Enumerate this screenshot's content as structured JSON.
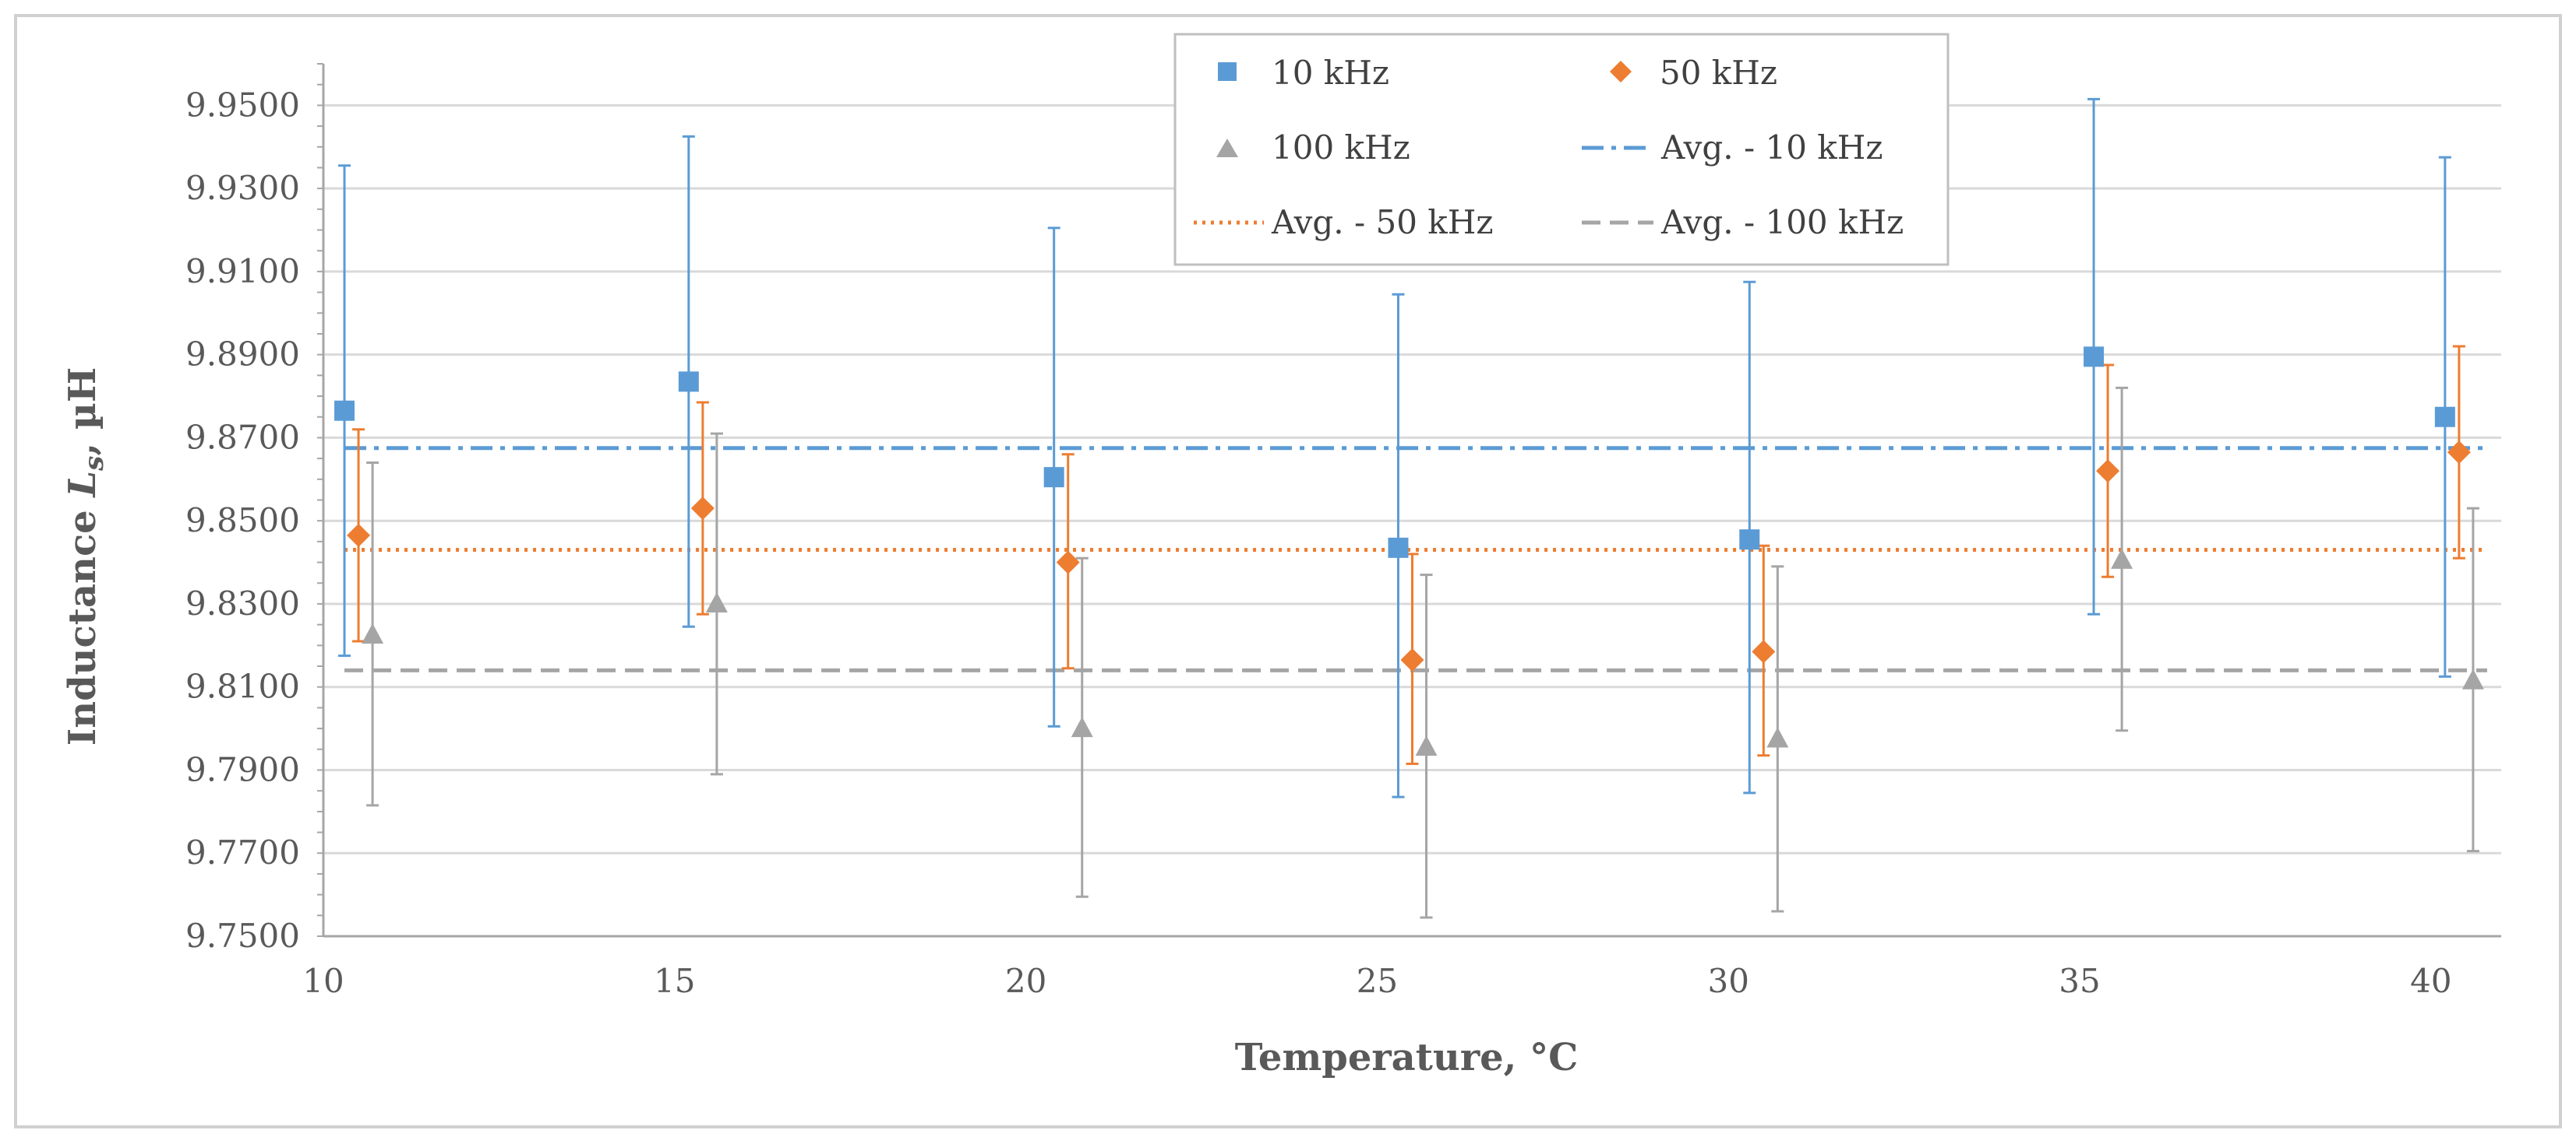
{
  "chart_data": {
    "type": "scatter",
    "title": "",
    "xlabel": "Temperature, °C",
    "ylabel_prefix": "Inductance ",
    "ylabel_var": "L",
    "ylabel_sub": "s",
    "ylabel_suffix": ", µH",
    "xlim": [
      10,
      41
    ],
    "ylim": [
      9.75,
      9.96
    ],
    "x_ticks": [
      "10",
      "15",
      "20",
      "25",
      "30",
      "35",
      "40"
    ],
    "x_tick_values": [
      10,
      15,
      20,
      25,
      30,
      35,
      40
    ],
    "y_ticks": [
      "9.7500",
      "9.7700",
      "9.7900",
      "9.8100",
      "9.8300",
      "9.8500",
      "9.8700",
      "9.8900",
      "9.9100",
      "9.9300",
      "9.9500"
    ],
    "y_tick_values": [
      9.75,
      9.77,
      9.79,
      9.81,
      9.83,
      9.85,
      9.87,
      9.89,
      9.91,
      9.93,
      9.95
    ],
    "grid": "horizontal",
    "legend_position": "top-center",
    "series": [
      {
        "name": "10 kHz",
        "marker": "square",
        "color": "#5b9bd5",
        "x": [
          10.3,
          15.2,
          20.4,
          25.3,
          30.3,
          35.2,
          40.2
        ],
        "y": [
          9.8765,
          9.8835,
          9.8605,
          9.8435,
          9.8455,
          9.8895,
          9.875
        ],
        "err_low": [
          9.8175,
          9.8245,
          9.8005,
          9.7835,
          9.7845,
          9.8275,
          9.8125
        ],
        "err_high": [
          9.9355,
          9.9425,
          9.9205,
          9.9045,
          9.9075,
          9.9515,
          9.9375
        ]
      },
      {
        "name": "50 kHz",
        "marker": "diamond",
        "color": "#ed7d31",
        "x": [
          10.5,
          15.4,
          20.6,
          25.5,
          30.5,
          35.4,
          40.4
        ],
        "y": [
          9.8465,
          9.853,
          9.84,
          9.8165,
          9.8185,
          9.862,
          9.8665
        ],
        "err_low": [
          9.821,
          9.8275,
          9.8145,
          9.7915,
          9.7935,
          9.8365,
          9.841
        ],
        "err_high": [
          9.872,
          9.8785,
          9.866,
          9.842,
          9.844,
          9.8875,
          9.892
        ]
      },
      {
        "name": "100 kHz",
        "marker": "triangle",
        "color": "#a5a5a5",
        "x": [
          10.7,
          15.6,
          20.8,
          25.7,
          30.7,
          35.6,
          40.6
        ],
        "y": [
          9.8225,
          9.83,
          9.8,
          9.7955,
          9.7975,
          9.8405,
          9.8115
        ],
        "err_low": [
          9.7815,
          9.789,
          9.7595,
          9.7545,
          9.756,
          9.7995,
          9.7705
        ],
        "err_high": [
          9.864,
          9.871,
          9.841,
          9.837,
          9.839,
          9.882,
          9.853
        ]
      }
    ],
    "averages": [
      {
        "name": "Avg. - 10 kHz",
        "value": 9.8675,
        "color": "#5b9bd5",
        "style": "dash-dot"
      },
      {
        "name": "Avg. - 50 kHz",
        "value": 9.843,
        "color": "#ed7d31",
        "style": "dotted"
      },
      {
        "name": "Avg. - 100 kHz",
        "value": 9.814,
        "color": "#a5a5a5",
        "style": "dashed"
      }
    ]
  }
}
